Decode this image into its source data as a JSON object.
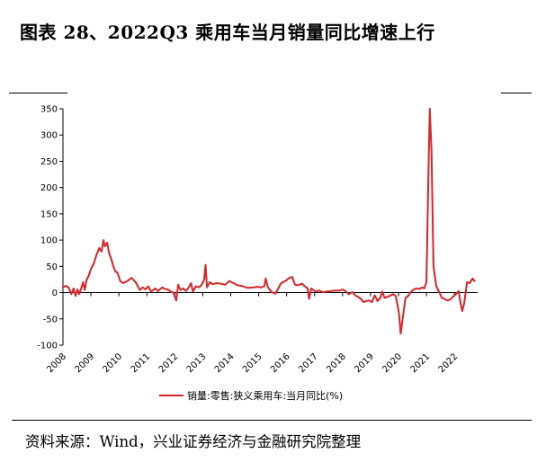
{
  "figure": {
    "title": "图表 28、2022Q3 乘用车当月销量同比增速上行",
    "source": "资料来源：Wind，兴业证券经济与金融研究院整理"
  },
  "colors": {
    "series": "#d9262b",
    "axis": "#000000"
  },
  "chart_data": {
    "type": "line",
    "title": "",
    "xlabel": "",
    "ylabel": "",
    "ylim": [
      -100,
      350
    ],
    "yticks": [
      -100,
      -50,
      0,
      50,
      100,
      150,
      200,
      250,
      300,
      350
    ],
    "xlim": [
      2008.0,
      2022.83
    ],
    "xticks": [
      "2008",
      "2009",
      "2010",
      "2011",
      "2012",
      "2013",
      "2014",
      "2015",
      "2016",
      "2017",
      "2018",
      "2019",
      "2020",
      "2021",
      "2022"
    ],
    "grid": false,
    "legend": "bottom",
    "series": [
      {
        "name": "销量:零售:狭义乘用车:当月同比(%)",
        "points": [
          [
            2008.0,
            10
          ],
          [
            2008.1,
            13
          ],
          [
            2008.2,
            10
          ],
          [
            2008.3,
            -3
          ],
          [
            2008.38,
            8
          ],
          [
            2008.45,
            -6
          ],
          [
            2008.52,
            6
          ],
          [
            2008.58,
            -3
          ],
          [
            2008.65,
            8
          ],
          [
            2008.72,
            20
          ],
          [
            2008.78,
            5
          ],
          [
            2008.85,
            25
          ],
          [
            2008.92,
            32
          ],
          [
            2009.0,
            45
          ],
          [
            2009.1,
            55
          ],
          [
            2009.2,
            72
          ],
          [
            2009.3,
            85
          ],
          [
            2009.38,
            78
          ],
          [
            2009.45,
            100
          ],
          [
            2009.5,
            88
          ],
          [
            2009.58,
            95
          ],
          [
            2009.65,
            75
          ],
          [
            2009.72,
            65
          ],
          [
            2009.8,
            50
          ],
          [
            2009.88,
            40
          ],
          [
            2009.95,
            38
          ],
          [
            2010.05,
            22
          ],
          [
            2010.15,
            18
          ],
          [
            2010.3,
            22
          ],
          [
            2010.45,
            28
          ],
          [
            2010.6,
            20
          ],
          [
            2010.75,
            5
          ],
          [
            2010.85,
            10
          ],
          [
            2010.95,
            6
          ],
          [
            2011.05,
            12
          ],
          [
            2011.15,
            2
          ],
          [
            2011.3,
            8
          ],
          [
            2011.4,
            3
          ],
          [
            2011.55,
            10
          ],
          [
            2011.65,
            7
          ],
          [
            2011.75,
            6
          ],
          [
            2011.85,
            2
          ],
          [
            2011.95,
            0
          ],
          [
            2012.05,
            -15
          ],
          [
            2012.12,
            15
          ],
          [
            2012.2,
            5
          ],
          [
            2012.3,
            8
          ],
          [
            2012.4,
            3
          ],
          [
            2012.5,
            10
          ],
          [
            2012.58,
            18
          ],
          [
            2012.65,
            2
          ],
          [
            2012.75,
            12
          ],
          [
            2012.85,
            10
          ],
          [
            2012.95,
            14
          ],
          [
            2013.05,
            25
          ],
          [
            2013.1,
            53
          ],
          [
            2013.15,
            10
          ],
          [
            2013.25,
            20
          ],
          [
            2013.35,
            16
          ],
          [
            2013.5,
            18
          ],
          [
            2013.65,
            17
          ],
          [
            2013.8,
            15
          ],
          [
            2013.95,
            22
          ],
          [
            2014.1,
            18
          ],
          [
            2014.25,
            14
          ],
          [
            2014.45,
            12
          ],
          [
            2014.6,
            9
          ],
          [
            2014.8,
            10
          ],
          [
            2014.95,
            11
          ],
          [
            2015.1,
            10
          ],
          [
            2015.2,
            12
          ],
          [
            2015.25,
            27
          ],
          [
            2015.32,
            12
          ],
          [
            2015.4,
            5
          ],
          [
            2015.5,
            0
          ],
          [
            2015.6,
            -2
          ],
          [
            2015.7,
            8
          ],
          [
            2015.8,
            18
          ],
          [
            2015.95,
            22
          ],
          [
            2016.1,
            28
          ],
          [
            2016.2,
            30
          ],
          [
            2016.3,
            15
          ],
          [
            2016.4,
            14
          ],
          [
            2016.55,
            17
          ],
          [
            2016.65,
            12
          ],
          [
            2016.75,
            8
          ],
          [
            2016.8,
            -12
          ],
          [
            2016.88,
            8
          ],
          [
            2016.95,
            5
          ],
          [
            2017.05,
            2
          ],
          [
            2017.15,
            4
          ],
          [
            2017.3,
            1
          ],
          [
            2017.45,
            2
          ],
          [
            2017.6,
            3
          ],
          [
            2017.75,
            4
          ],
          [
            2017.9,
            4
          ],
          [
            2018.0,
            6
          ],
          [
            2018.1,
            3
          ],
          [
            2018.22,
            -3
          ],
          [
            2018.35,
            1
          ],
          [
            2018.45,
            -5
          ],
          [
            2018.55,
            -8
          ],
          [
            2018.65,
            -12
          ],
          [
            2018.75,
            -18
          ],
          [
            2018.85,
            -16
          ],
          [
            2018.95,
            -15
          ],
          [
            2019.05,
            -18
          ],
          [
            2019.15,
            -5
          ],
          [
            2019.25,
            -16
          ],
          [
            2019.35,
            -10
          ],
          [
            2019.42,
            2
          ],
          [
            2019.5,
            -10
          ],
          [
            2019.6,
            -8
          ],
          [
            2019.7,
            -6
          ],
          [
            2019.8,
            -3
          ],
          [
            2019.9,
            -6
          ],
          [
            2019.95,
            -20
          ],
          [
            2020.02,
            -40
          ],
          [
            2020.08,
            -78
          ],
          [
            2020.16,
            -45
          ],
          [
            2020.25,
            -10
          ],
          [
            2020.35,
            -6
          ],
          [
            2020.45,
            2
          ],
          [
            2020.55,
            6
          ],
          [
            2020.65,
            8
          ],
          [
            2020.75,
            7
          ],
          [
            2020.85,
            10
          ],
          [
            2020.92,
            8
          ],
          [
            2021.0,
            20
          ],
          [
            2021.06,
            200
          ],
          [
            2021.12,
            350
          ],
          [
            2021.18,
            270
          ],
          [
            2021.25,
            50
          ],
          [
            2021.35,
            12
          ],
          [
            2021.45,
            2
          ],
          [
            2021.55,
            -10
          ],
          [
            2021.65,
            -12
          ],
          [
            2021.75,
            -15
          ],
          [
            2021.85,
            -13
          ],
          [
            2021.95,
            -8
          ],
          [
            2022.05,
            -3
          ],
          [
            2022.15,
            3
          ],
          [
            2022.22,
            -20
          ],
          [
            2022.28,
            -35
          ],
          [
            2022.35,
            -20
          ],
          [
            2022.45,
            20
          ],
          [
            2022.55,
            18
          ],
          [
            2022.65,
            27
          ],
          [
            2022.72,
            22
          ]
        ]
      }
    ]
  }
}
